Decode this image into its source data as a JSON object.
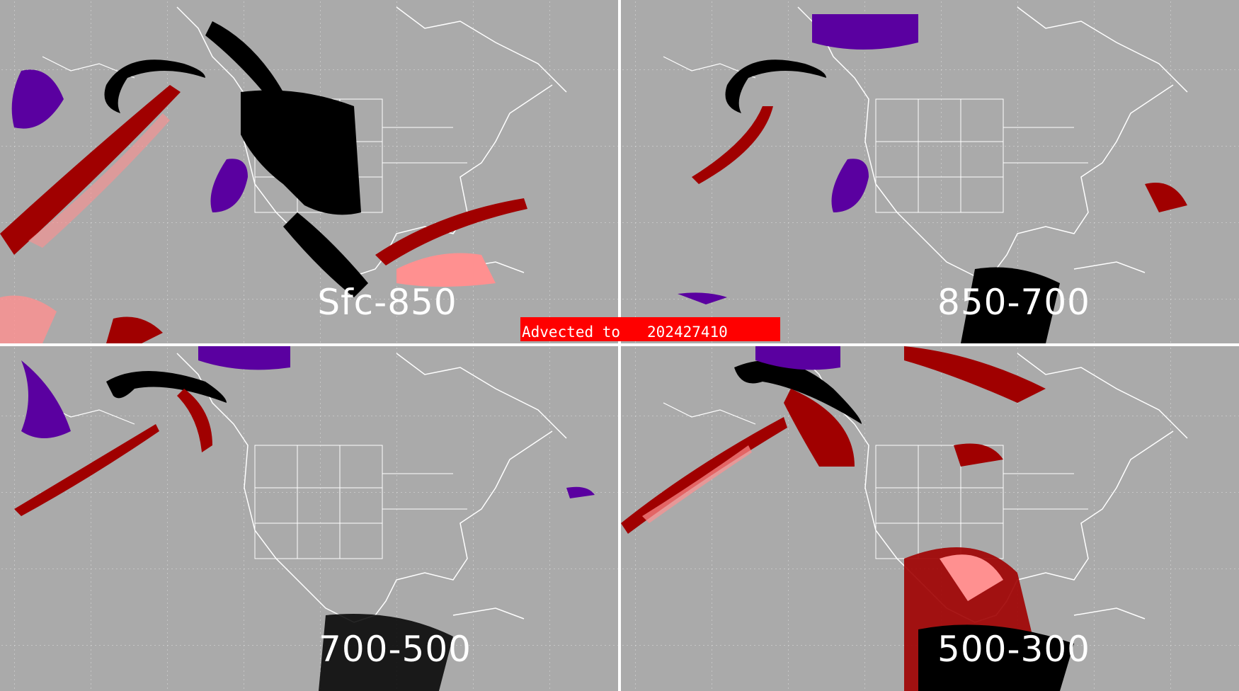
{
  "banner": {
    "label": "Advected to",
    "value": "202427410"
  },
  "panels": [
    {
      "label": "Sfc-850"
    },
    {
      "label": "850-700"
    },
    {
      "label": "700-500"
    },
    {
      "label": "500-300"
    }
  ],
  "colors": {
    "background": "#aaaaaa",
    "divider": "#ffffff",
    "coastline": "#ffffff",
    "dark_red": "#a00000",
    "pink": "#ff9090",
    "black": "#000000",
    "purple": "#5a00a0",
    "banner": "#ff0000"
  }
}
